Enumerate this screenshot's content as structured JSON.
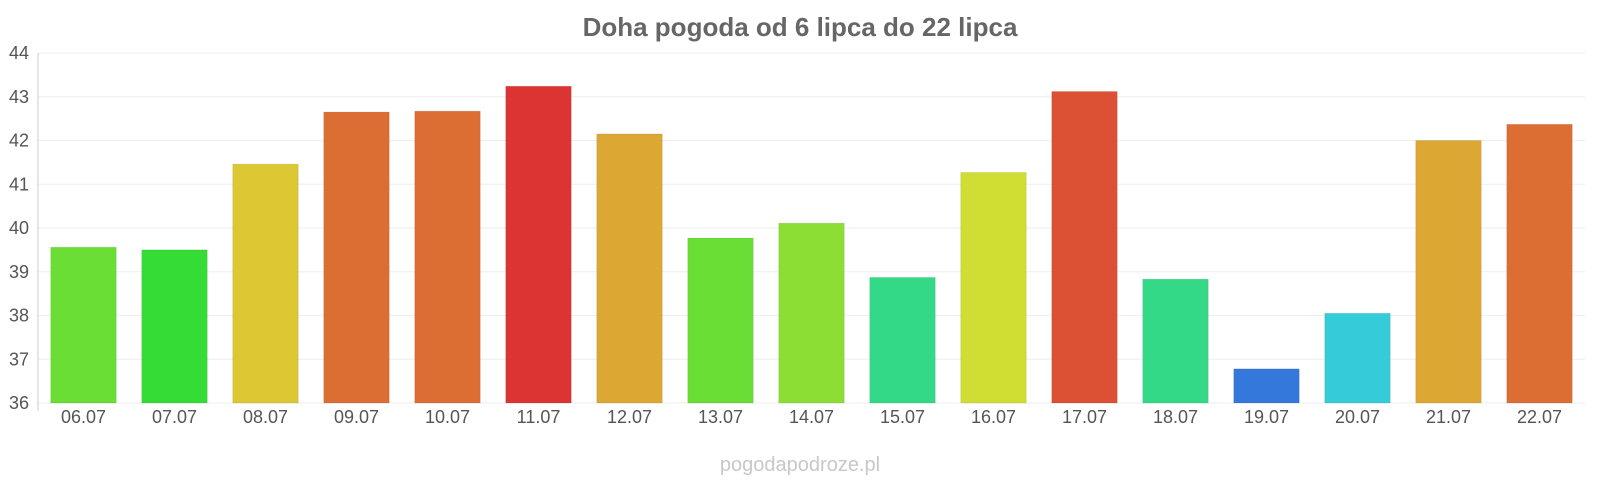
{
  "chart_data": {
    "type": "bar",
    "title": "Doha pogoda od 6 lipca do 22 lipca",
    "xlabel": "",
    "ylabel": "",
    "ylim": [
      36,
      44
    ],
    "yticks": [
      "36",
      "37",
      "38",
      "39",
      "40",
      "41",
      "42",
      "43",
      "44"
    ],
    "grid": true,
    "categories": [
      "06.07",
      "07.07",
      "08.07",
      "09.07",
      "10.07",
      "11.07",
      "12.07",
      "13.07",
      "14.07",
      "15.07",
      "16.07",
      "17.07",
      "18.07",
      "19.07",
      "20.07",
      "21.07",
      "22.07"
    ],
    "values": [
      39.56,
      39.5,
      41.46,
      42.65,
      42.67,
      43.24,
      42.15,
      39.77,
      40.11,
      38.87,
      41.27,
      43.12,
      38.83,
      36.78,
      38.05,
      42.0,
      42.37
    ],
    "colors": [
      "#6ade35",
      "#34dc35",
      "#dcc833",
      "#dc6e33",
      "#dc6e33",
      "#dc3433",
      "#dca833",
      "#6ade35",
      "#8cde35",
      "#34d988",
      "#d0de33",
      "#dc5033",
      "#34d988",
      "#3478dc",
      "#34ccd8",
      "#dca833",
      "#dc6e33"
    ]
  },
  "watermark": "pogodapodroze.pl"
}
